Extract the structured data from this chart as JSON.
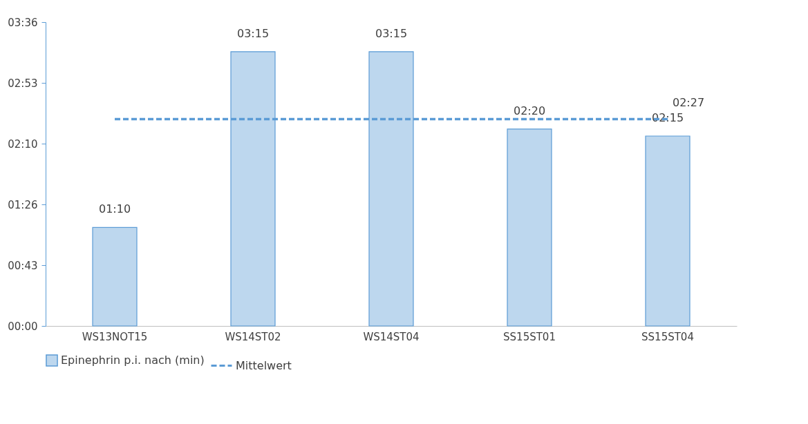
{
  "chart_data": {
    "type": "bar",
    "categories": [
      "WS13NOT15",
      "WS14ST02",
      "WS14ST04",
      "SS15ST01",
      "SS15ST04"
    ],
    "ylim": [
      0,
      216
    ],
    "yticks": [
      {
        "value": 0,
        "label": "00:00"
      },
      {
        "value": 43.2,
        "label": "00:43"
      },
      {
        "value": 86.4,
        "label": "01:26"
      },
      {
        "value": 129.6,
        "label": "02:10"
      },
      {
        "value": 172.8,
        "label": "02:53"
      },
      {
        "value": 216,
        "label": "03:36"
      }
    ],
    "grid": false,
    "legend": "bottom",
    "series": [
      {
        "name": "Epinephrin p.i. nach (min)",
        "color": "#bdd7ee",
        "values": [
          70,
          195,
          195,
          140,
          135
        ],
        "value_labels": [
          "01:10",
          "03:15",
          "03:15",
          "02:20",
          "02:15"
        ]
      },
      {
        "name": "Mittelwert",
        "type": "line",
        "line_style": "dashed",
        "color": "#5b9bd5",
        "values": [
          147,
          147,
          147,
          147,
          147
        ],
        "value_labels": [
          null,
          null,
          null,
          null,
          "02:27"
        ]
      }
    ]
  }
}
